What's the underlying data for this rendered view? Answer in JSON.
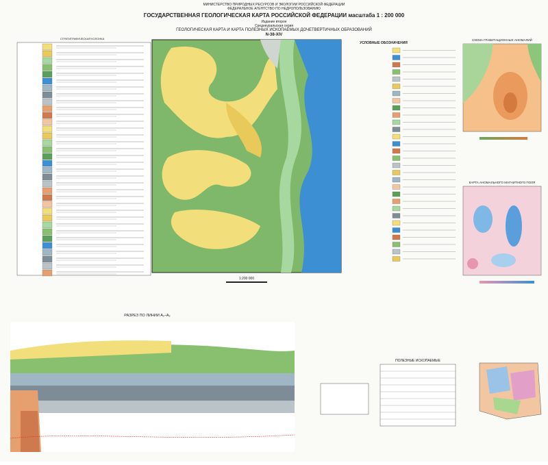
{
  "header": {
    "ministry": "МИНИСТЕРСТВО ПРИРОДНЫХ РЕСУРСОВ И ЭКОЛОГИИ РОССИЙСКОЙ ФЕДЕРАЦИИ",
    "agency": "ФЕДЕРАЛЬНОЕ АГЕНТСТВО ПО НЕДРОПОЛЬЗОВАНИЮ",
    "title": "ГОСУДАРСТВЕННАЯ ГЕОЛОГИЧЕСКАЯ КАРТА РОССИЙСКОЙ ФЕДЕРАЦИИ масштаба 1 : 200 000",
    "edition": "Издание второе",
    "series": "Среднеуральская серия",
    "subtitle": "ГЕОЛОГИЧЕСКАЯ КАРТА И КАРТА ПОЛЕЗНЫХ ИСКОПАЕМЫХ ДОЧЕТВЕРТИЧНЫХ ОБРАЗОВАНИЙ",
    "sheet": "N-38-XIV"
  },
  "panels": {
    "strat_column": "СТРАТИГРАФИЧЕСКАЯ КОЛОНКА",
    "legend": "УСЛОВНЫЕ ОБОЗНАЧЕНИЯ",
    "gravity": "СХЕМА ГРАВИТАЦИОННЫХ АНОМАЛИЙ",
    "magnetic": "КАРТА АНОМАЛЬНОГО МАГНИТНОГО ПОЛЯ",
    "section": "РАЗРЕЗ ПО ЛИНИИ А₁–А₂",
    "minerals": "ПОЛЕЗНЫЕ ИСКОПАЕМЫЕ",
    "scale": "1:200 000"
  }
}
